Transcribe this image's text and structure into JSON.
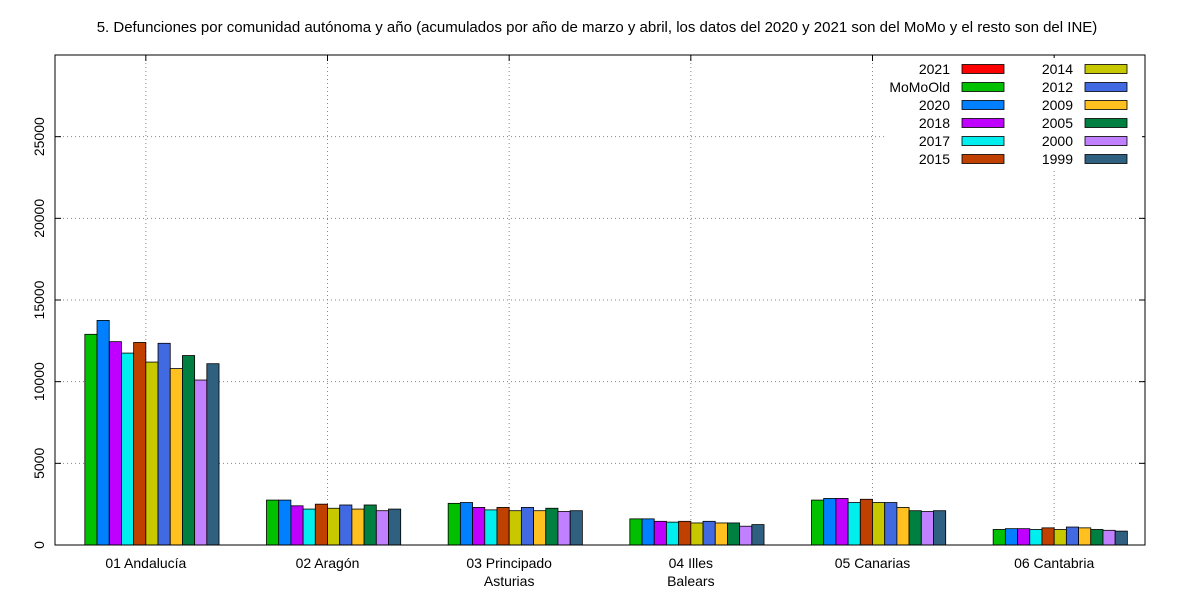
{
  "chart_data": {
    "type": "bar",
    "title": "5. Defunciones por comunidad autónoma y año (acumulados por año de marzo y abril, los datos del 2020 y 2021 son del MoMo y el resto son del INE)",
    "xlabel": "",
    "ylabel": "",
    "ylim": [
      0,
      30000
    ],
    "yticks": [
      0,
      5000,
      10000,
      15000,
      20000,
      25000
    ],
    "grid": true,
    "legend_position": "top-right",
    "categories": [
      [
        "01 Andalucía"
      ],
      [
        "02 Aragón"
      ],
      [
        "03 Principado",
        "Asturias"
      ],
      [
        "04 Illes",
        "Balears"
      ],
      [
        "05 Canarias"
      ],
      [
        "06 Cantabria"
      ]
    ],
    "series": [
      {
        "name": "2021",
        "color": "#ff0000",
        "values": [
          0,
          0,
          0,
          0,
          0,
          0
        ]
      },
      {
        "name": "MoMoOld",
        "color": "#00c000",
        "values": [
          12900,
          2750,
          2550,
          1600,
          2750,
          950
        ]
      },
      {
        "name": "2020",
        "color": "#0080ff",
        "values": [
          13750,
          2750,
          2600,
          1600,
          2850,
          1000
        ]
      },
      {
        "name": "2018",
        "color": "#c000ff",
        "values": [
          12450,
          2400,
          2300,
          1450,
          2850,
          1000
        ]
      },
      {
        "name": "2017",
        "color": "#00eeee",
        "values": [
          11750,
          2200,
          2150,
          1400,
          2600,
          950
        ]
      },
      {
        "name": "2015",
        "color": "#c04000",
        "values": [
          12400,
          2500,
          2300,
          1450,
          2800,
          1050
        ]
      },
      {
        "name": "2014",
        "color": "#c8c800",
        "values": [
          11200,
          2250,
          2100,
          1350,
          2600,
          950
        ]
      },
      {
        "name": "2012",
        "color": "#4169e1",
        "values": [
          12350,
          2450,
          2300,
          1450,
          2600,
          1100
        ]
      },
      {
        "name": "2009",
        "color": "#ffc020",
        "values": [
          10800,
          2200,
          2100,
          1350,
          2300,
          1050
        ]
      },
      {
        "name": "2005",
        "color": "#008040",
        "values": [
          11600,
          2450,
          2250,
          1350,
          2100,
          950
        ]
      },
      {
        "name": "2000",
        "color": "#c080ff",
        "values": [
          10100,
          2100,
          2050,
          1150,
          2050,
          900
        ]
      },
      {
        "name": "1999",
        "color": "#306080",
        "values": [
          11100,
          2200,
          2100,
          1250,
          2100,
          850
        ]
      }
    ]
  }
}
